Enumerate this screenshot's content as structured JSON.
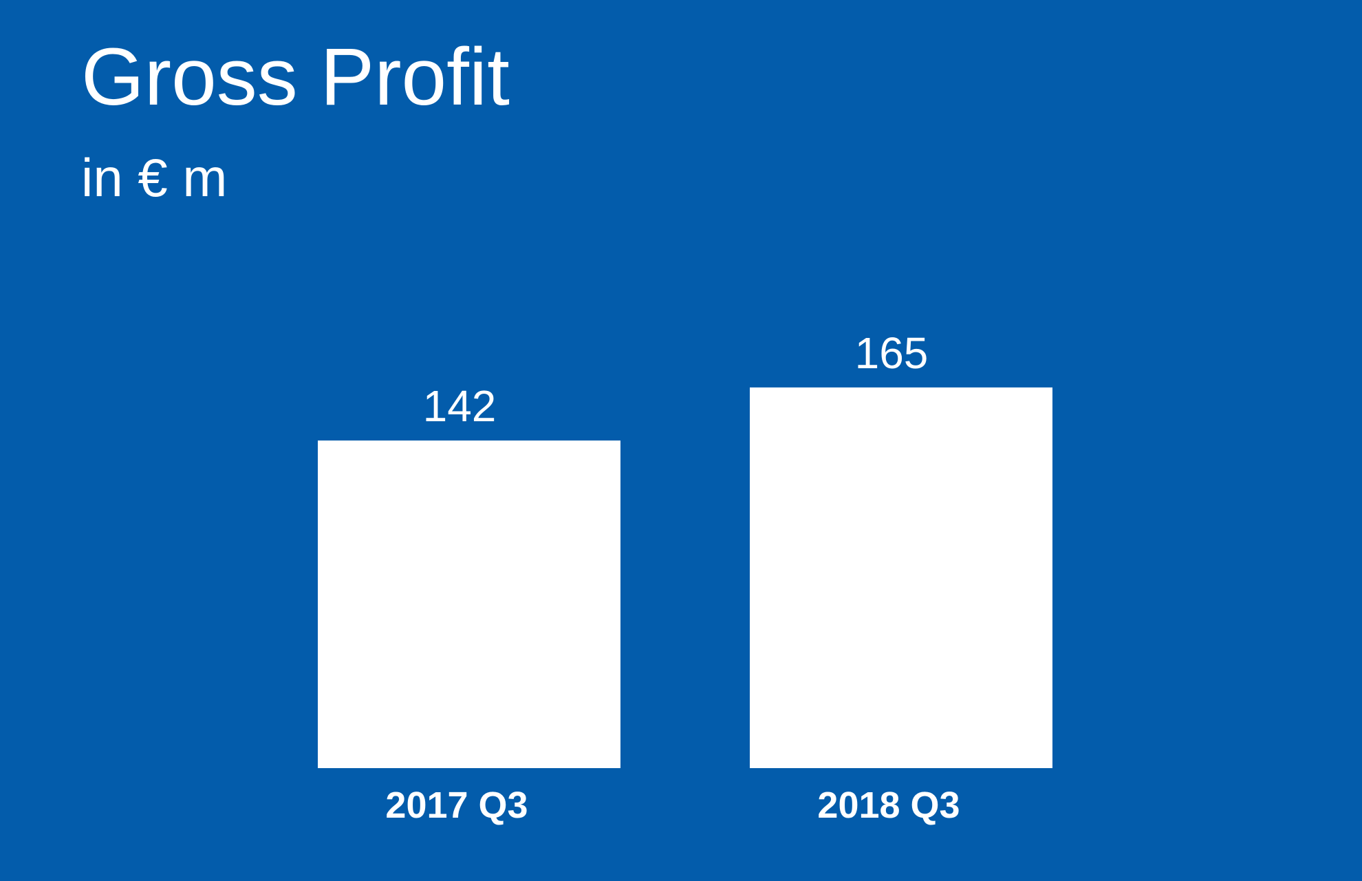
{
  "page": {
    "background_color": "#035CAB"
  },
  "chart_data": {
    "type": "bar",
    "title": "Gross Profit",
    "subtitle": "in € m",
    "categories": [
      "2017 Q3",
      "2018 Q3"
    ],
    "values": [
      142,
      165
    ],
    "bar_color": "#FFFFFF",
    "text_color": "#FFFFFF",
    "grid": false,
    "legend": false,
    "xlabel": "",
    "ylabel": "",
    "axis_visible": false
  }
}
